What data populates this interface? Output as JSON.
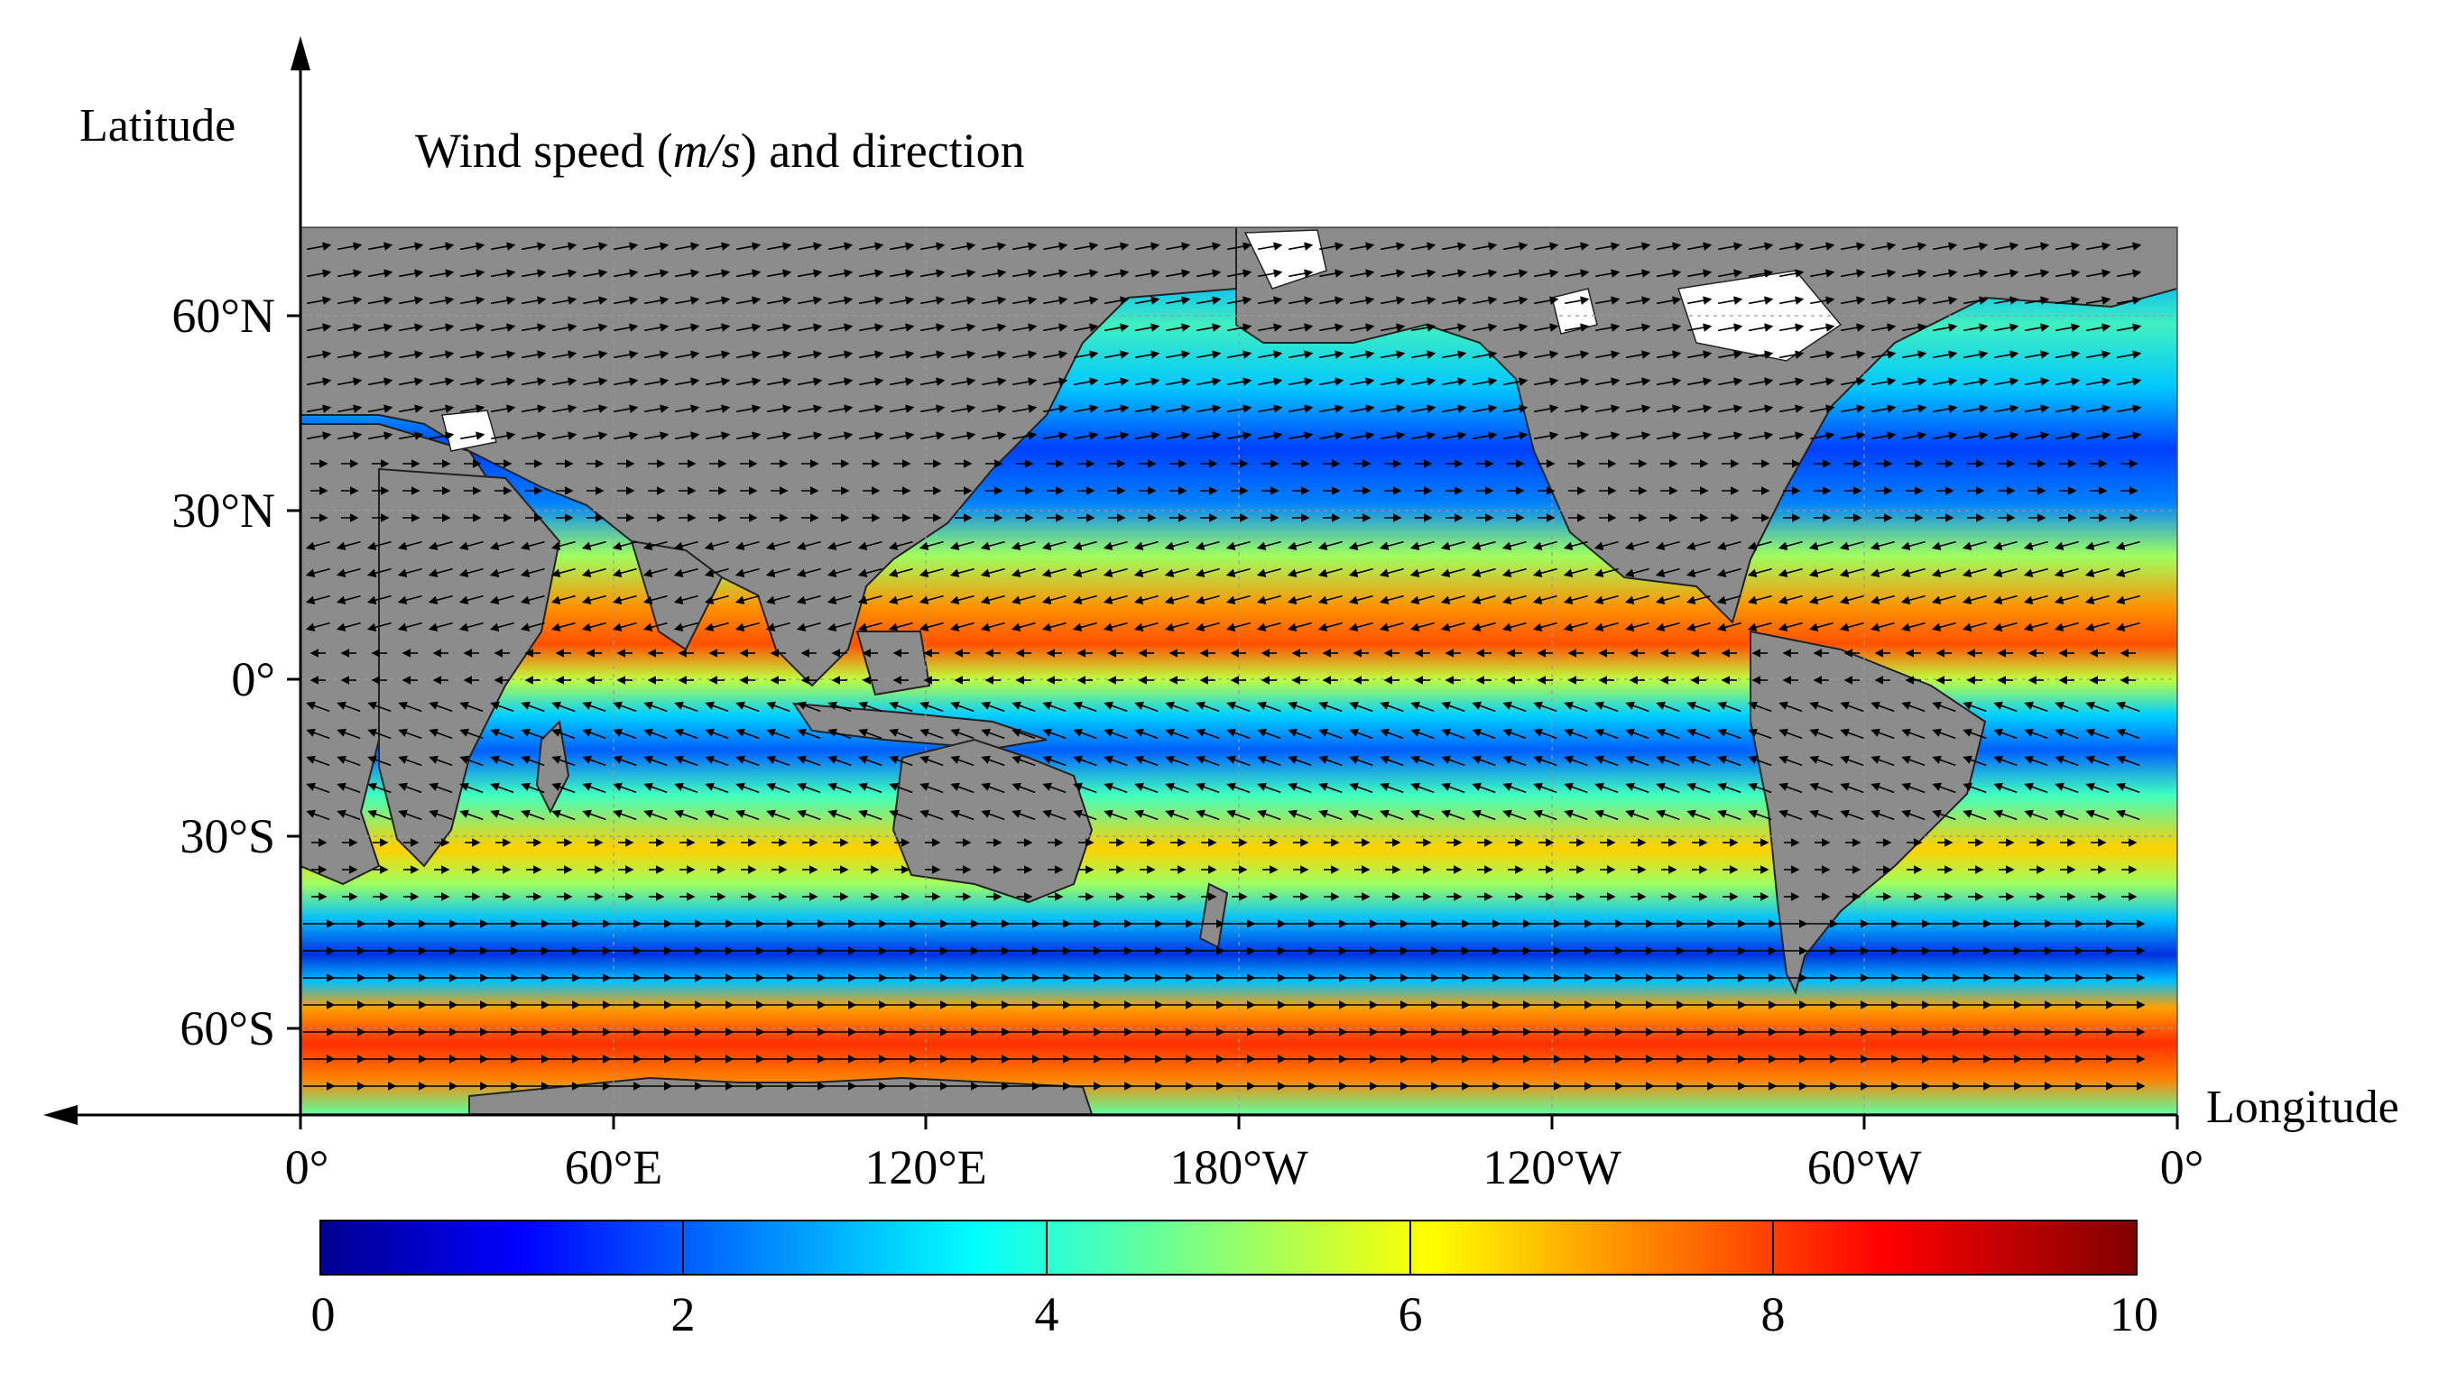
{
  "figure": {
    "title_prefix": "Wind speed (",
    "title_unit": "m/s",
    "title_suffix": ") and direction",
    "y_axis_label": "Latitude",
    "x_axis_label": "Longitude",
    "lat_ticks": [
      "60°N",
      "30°N",
      "0°",
      "30°S",
      "60°S"
    ],
    "lon_ticks": [
      "0°",
      "60°E",
      "120°E",
      "180°W",
      "120°W",
      "60°W",
      "0°"
    ],
    "colorbar_ticks": [
      "0",
      "2",
      "4",
      "6",
      "8",
      "10"
    ]
  },
  "colors": {
    "land": "#8c8c8c",
    "ice": "#ffffff",
    "arrows": "#000000",
    "colormap": "jet"
  },
  "chart_data": {
    "type": "heatmap",
    "title": "Wind speed (m/s) and direction",
    "xlabel": "Longitude",
    "ylabel": "Latitude",
    "xlim": [
      0,
      360
    ],
    "ylim": [
      -78,
      78
    ],
    "colorbar_range": [
      0,
      10
    ],
    "colorbar_tick_values": [
      0,
      2,
      4,
      6,
      8,
      10
    ],
    "grid": true,
    "zonal_wind_bands": [
      {
        "lat_range": [
          45,
          65
        ],
        "speed": 7.5,
        "direction": "westerlies"
      },
      {
        "lat_range": [
          25,
          45
        ],
        "speed": 2.0,
        "direction": "variable"
      },
      {
        "lat_range": [
          8,
          25
        ],
        "speed": 7.5,
        "direction": "north-east trades"
      },
      {
        "lat_range": [
          -5,
          8
        ],
        "speed": 2.5,
        "direction": "doldrums"
      },
      {
        "lat_range": [
          -30,
          -5
        ],
        "speed": 6.5,
        "direction": "south-east trades"
      },
      {
        "lat_range": [
          -42,
          -30
        ],
        "speed": 1.5,
        "direction": "variable"
      },
      {
        "lat_range": [
          -65,
          -42
        ],
        "speed": 9.0,
        "direction": "westerlies"
      }
    ]
  }
}
